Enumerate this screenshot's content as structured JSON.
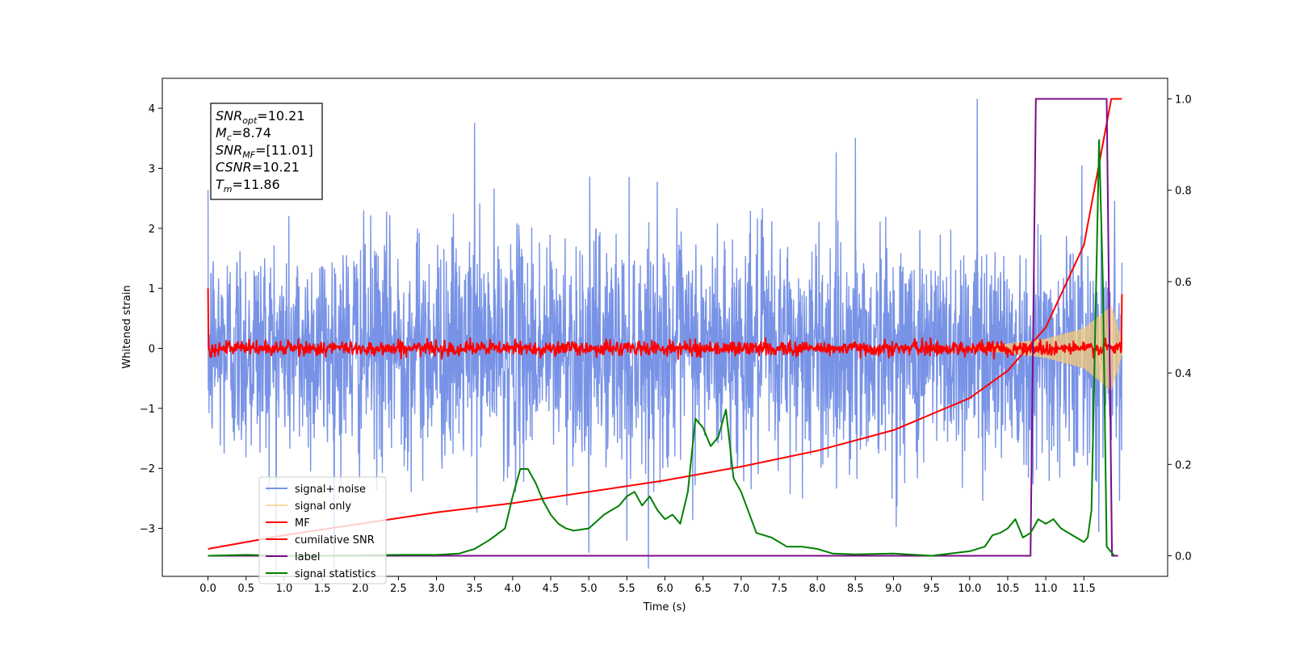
{
  "chart_data": {
    "type": "line",
    "xlabel": "Time (s)",
    "ylabel": "Whitened strain",
    "xlim": [
      -0.6,
      12.6
    ],
    "ylim": [
      -3.8,
      4.5
    ],
    "y2lim": [
      -0.045,
      1.045
    ],
    "x_ticks": [
      0.0,
      0.5,
      1.0,
      1.5,
      2.0,
      2.5,
      3.0,
      3.5,
      4.0,
      4.5,
      5.0,
      5.5,
      6.0,
      6.5,
      7.0,
      7.5,
      8.0,
      8.5,
      9.0,
      9.5,
      10.0,
      10.5,
      11.0,
      11.5
    ],
    "x_tick_labels": [
      "0.0",
      "0.5",
      "1.0",
      "1.5",
      "2.0",
      "2.5",
      "3.0",
      "3.5",
      "4.0",
      "4.5",
      "5.0",
      "5.5",
      "6.0",
      "6.5",
      "7.0",
      "7.5",
      "8.0",
      "8.5",
      "9.0",
      "9.5",
      "10.0",
      "10.5",
      "11.0",
      "11.5"
    ],
    "y_ticks": [
      -3,
      -2,
      -1,
      0,
      1,
      2,
      3,
      4
    ],
    "y_tick_labels": [
      "−3",
      "−2",
      "−1",
      "0",
      "1",
      "2",
      "3",
      "4"
    ],
    "y2_ticks": [
      0.0,
      0.2,
      0.4,
      0.6,
      0.8,
      1.0
    ],
    "y2_tick_labels": [
      "0.0",
      "0.2",
      "0.4",
      "0.6",
      "0.8",
      "1.0"
    ],
    "grid": false,
    "legend_position": "lower-left",
    "annotation": {
      "lines": [
        {
          "sym": "SNR",
          "sub": "opt",
          "val": "=10.21"
        },
        {
          "sym": "M",
          "sub": "c",
          "val": "=8.74"
        },
        {
          "sym": "SNR",
          "sub": "MF",
          "val": "=[11.01]"
        },
        {
          "sym": "CSNR",
          "sub": "",
          "val": "=10.21"
        },
        {
          "sym": "T",
          "sub": "m",
          "val": "=11.86"
        }
      ]
    },
    "series": [
      {
        "name": "signal+ noise",
        "axis": "left",
        "color": "#7893e6",
        "style": "noise-band",
        "t_start": 0.0,
        "t_end": 12.0,
        "sigma": 0.95,
        "peaks": [
          [
            3.5,
            3.75
          ],
          [
            10.1,
            4.15
          ],
          [
            8.5,
            3.5
          ],
          [
            5.0,
            -3.4
          ],
          [
            5.5,
            -3.2
          ]
        ]
      },
      {
        "name": "signal only",
        "axis": "left",
        "color": "#f5c97a",
        "style": "chirp",
        "t_start": 10.0,
        "t_end": 12.0,
        "envelope": [
          [
            10.0,
            0.03
          ],
          [
            10.5,
            0.08
          ],
          [
            11.0,
            0.16
          ],
          [
            11.5,
            0.33
          ],
          [
            11.86,
            0.7
          ],
          [
            12.0,
            0.1
          ]
        ]
      },
      {
        "name": "MF",
        "axis": "left",
        "color": "#ff0000",
        "style": "noise-band",
        "t_start": 0.0,
        "t_end": 12.0,
        "sigma": 0.06,
        "start_spike": 1.0,
        "end_spike": 0.9
      },
      {
        "name": "cumilative SNR",
        "axis": "right",
        "color": "#ff0000",
        "style": "line",
        "x": [
          0.0,
          1.0,
          2.0,
          3.0,
          4.0,
          5.0,
          6.0,
          7.0,
          8.0,
          9.0,
          10.0,
          10.5,
          11.0,
          11.5,
          11.86,
          12.0
        ],
        "y": [
          0.015,
          0.045,
          0.07,
          0.095,
          0.115,
          0.14,
          0.165,
          0.195,
          0.23,
          0.275,
          0.345,
          0.405,
          0.5,
          0.68,
          1.0,
          1.0
        ]
      },
      {
        "name": "label",
        "axis": "right",
        "color": "#7b0c8a",
        "style": "line",
        "x": [
          0.0,
          10.8,
          10.87,
          11.8,
          11.87,
          11.95
        ],
        "y": [
          0.0,
          0.0,
          1.0,
          1.0,
          0.0,
          0.0
        ]
      },
      {
        "name": "signal statistics",
        "axis": "right",
        "color": "#008000",
        "style": "line",
        "x": [
          0.0,
          0.5,
          1.0,
          1.5,
          2.0,
          2.5,
          3.0,
          3.3,
          3.5,
          3.7,
          3.9,
          4.0,
          4.1,
          4.2,
          4.3,
          4.4,
          4.5,
          4.6,
          4.7,
          4.8,
          5.0,
          5.2,
          5.3,
          5.4,
          5.5,
          5.6,
          5.7,
          5.8,
          5.9,
          6.0,
          6.1,
          6.2,
          6.3,
          6.4,
          6.5,
          6.6,
          6.7,
          6.8,
          6.9,
          7.0,
          7.2,
          7.4,
          7.6,
          7.8,
          8.0,
          8.2,
          8.5,
          9.0,
          9.5,
          10.0,
          10.2,
          10.3,
          10.4,
          10.5,
          10.6,
          10.7,
          10.8,
          10.9,
          11.0,
          11.1,
          11.2,
          11.4,
          11.5,
          11.55,
          11.6,
          11.65,
          11.7,
          11.75,
          11.8,
          11.85,
          11.9
        ],
        "y": [
          0.0,
          0.002,
          0.0,
          0.0,
          0.001,
          0.002,
          0.002,
          0.005,
          0.015,
          0.035,
          0.06,
          0.13,
          0.19,
          0.19,
          0.16,
          0.12,
          0.09,
          0.07,
          0.06,
          0.055,
          0.06,
          0.09,
          0.1,
          0.11,
          0.13,
          0.14,
          0.11,
          0.13,
          0.1,
          0.08,
          0.09,
          0.07,
          0.14,
          0.3,
          0.28,
          0.24,
          0.26,
          0.32,
          0.17,
          0.14,
          0.05,
          0.04,
          0.02,
          0.02,
          0.015,
          0.005,
          0.003,
          0.005,
          0.0,
          0.01,
          0.02,
          0.045,
          0.05,
          0.06,
          0.08,
          0.04,
          0.05,
          0.08,
          0.07,
          0.08,
          0.06,
          0.04,
          0.03,
          0.04,
          0.1,
          0.5,
          0.91,
          0.6,
          0.02,
          0.01,
          0.0
        ]
      }
    ]
  }
}
